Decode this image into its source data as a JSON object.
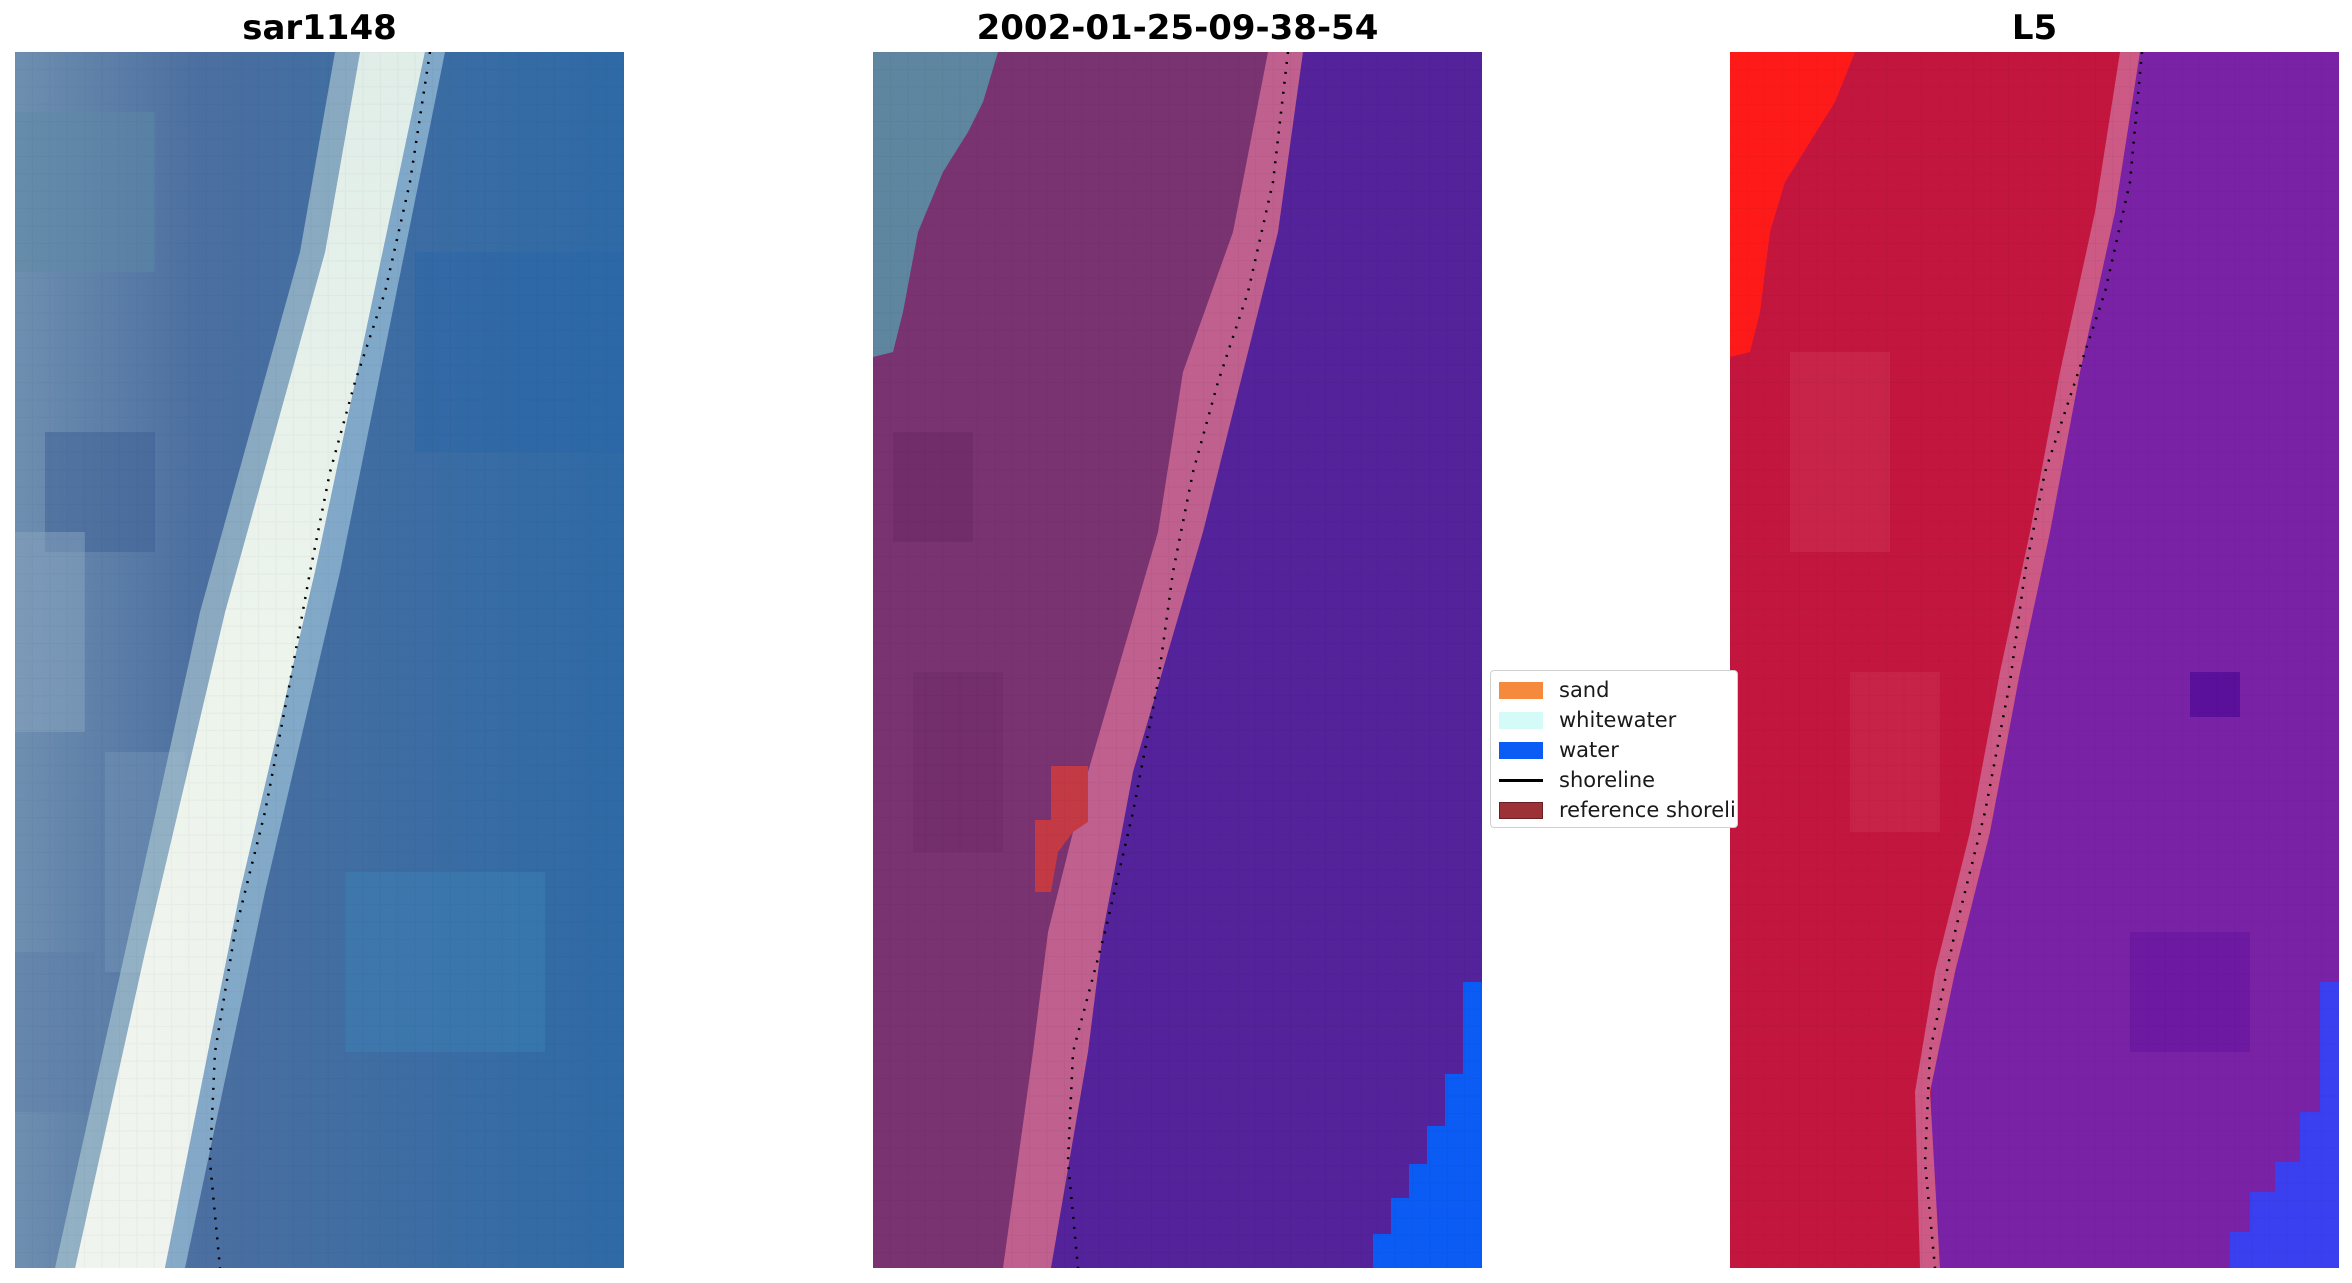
{
  "panels": [
    {
      "title": "sar1148",
      "kind": "rgb-image"
    },
    {
      "title": "2002-01-25-09-38-54",
      "kind": "classified-overlay"
    },
    {
      "title": "L5",
      "kind": "index-map"
    }
  ],
  "legend": {
    "items": [
      {
        "label": "sand",
        "color": "#f58a3c",
        "kind": "swatch"
      },
      {
        "label": "whitewater",
        "color": "#d4fbf8",
        "kind": "swatch"
      },
      {
        "label": "water",
        "color": "#0a5cf5",
        "kind": "swatch"
      },
      {
        "label": "shoreline",
        "color": "#000000",
        "kind": "line"
      },
      {
        "label": "reference shoreline",
        "color": "#9c3236",
        "kind": "swatch"
      }
    ]
  },
  "colors": {
    "rgb_water": "#2f6fa8",
    "rgb_land": "#4e74a3",
    "rgb_whitewater": "#f4f8f0",
    "class_land": "#7a3371",
    "class_beach": "#c0608f",
    "class_water": "#54229a",
    "class_water_bright": "#0a5cf5",
    "class_gray": "#5f86a0",
    "class_reference": "#c33a45",
    "index_land": "#c3163e",
    "index_land_bright": "#ff1a1a",
    "index_beach": "#cc5a85",
    "index_water": "#7a22a6",
    "index_water_blue": "#3a40f0"
  }
}
